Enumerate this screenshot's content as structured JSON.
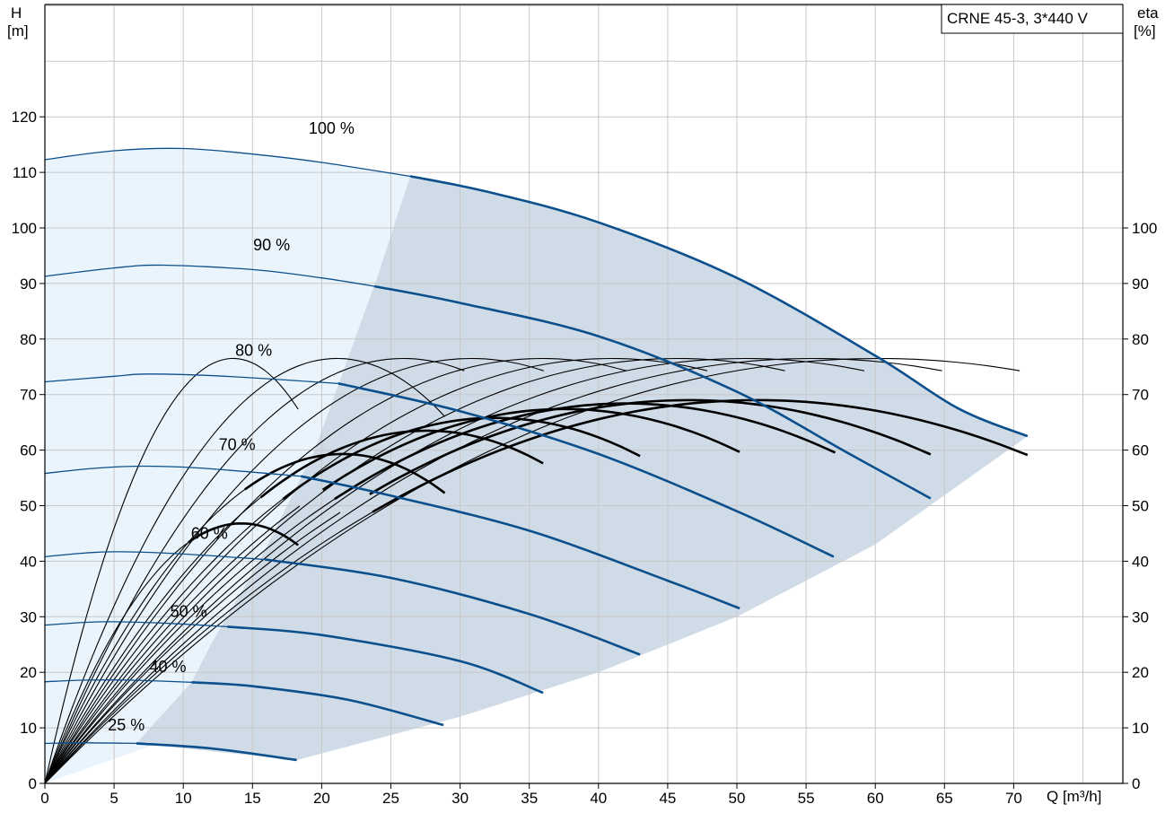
{
  "chart_data": {
    "type": "line",
    "title": "CRNE 45-3, 3*440 V",
    "x_axis": {
      "label": "Q [m³/h]",
      "range": [
        0,
        77
      ],
      "ticks": [
        0,
        5,
        10,
        15,
        20,
        25,
        30,
        35,
        40,
        45,
        50,
        55,
        60,
        65,
        70
      ]
    },
    "y_axis_left": {
      "label_line1": "H",
      "label_line2": "[m]",
      "range": [
        0,
        140
      ],
      "ticks": [
        0,
        10,
        20,
        30,
        40,
        50,
        60,
        70,
        80,
        90,
        100,
        110,
        120
      ]
    },
    "y_axis_right": {
      "label_line1": "eta",
      "label_line2": "[%]",
      "range": [
        0,
        140
      ],
      "ticks": [
        0,
        10,
        20,
        30,
        40,
        50,
        60,
        70,
        80,
        90,
        100
      ]
    },
    "grid": true,
    "colors": {
      "head_curve": "#0b4f8c",
      "eta_curve": "#000000",
      "band_light": "#eaf4fc",
      "band_dark": "#cfdbe6",
      "grid": "#c8c8c8",
      "frame": "#000000"
    },
    "head_curves": [
      {
        "speed": "100 %",
        "label_pos": [
          21,
          117
        ],
        "thin": [
          [
            0,
            112.3
          ],
          [
            5,
            113.9
          ],
          [
            10,
            114.3
          ],
          [
            15,
            113.3
          ],
          [
            20,
            111.8
          ],
          [
            26.4,
            109.3
          ]
        ],
        "thick": [
          [
            26.4,
            109.3
          ],
          [
            32,
            106.5
          ],
          [
            40,
            101
          ],
          [
            50,
            91
          ],
          [
            60,
            77
          ],
          [
            66,
            67.5
          ],
          [
            71,
            62.5
          ]
        ]
      },
      {
        "speed": "90 %",
        "label_pos": [
          17,
          96
        ],
        "thin": [
          [
            0,
            91.3
          ],
          [
            5,
            92.8
          ],
          [
            8.5,
            93.3
          ],
          [
            15,
            92.5
          ],
          [
            20,
            91
          ],
          [
            23.8,
            89.5
          ]
        ],
        "thick": [
          [
            23.8,
            89.5
          ],
          [
            30,
            86.5
          ],
          [
            40,
            80.5
          ],
          [
            50,
            70.5
          ],
          [
            58,
            59.5
          ],
          [
            64,
            51.3
          ]
        ]
      },
      {
        "speed": "80 %",
        "label_pos": [
          15.7,
          77
        ],
        "thin": [
          [
            0,
            72.3
          ],
          [
            5,
            73.3
          ],
          [
            7.5,
            73.7
          ],
          [
            13,
            73.3
          ],
          [
            21.2,
            72
          ]
        ],
        "thick": [
          [
            21.2,
            72
          ],
          [
            30,
            67
          ],
          [
            40,
            59.3
          ],
          [
            50,
            49
          ],
          [
            57,
            40.8
          ]
        ]
      },
      {
        "speed": "70 %",
        "label_pos": [
          14.5,
          60
        ],
        "thin": [
          [
            0,
            55.8
          ],
          [
            3,
            56.6
          ],
          [
            6.5,
            57.1
          ],
          [
            11,
            56.8
          ],
          [
            18.5,
            55.3
          ]
        ],
        "thick": [
          [
            18.5,
            55.3
          ],
          [
            25,
            51.8
          ],
          [
            35,
            45.5
          ],
          [
            45,
            36.5
          ],
          [
            50.2,
            31.5
          ]
        ]
      },
      {
        "speed": "60 %",
        "label_pos": [
          12.5,
          44
        ],
        "thin": [
          [
            0,
            40.8
          ],
          [
            3,
            41.5
          ],
          [
            5.5,
            41.7
          ],
          [
            10,
            41.3
          ],
          [
            15.9,
            40.3
          ]
        ],
        "thick": [
          [
            15.9,
            40.3
          ],
          [
            25,
            37
          ],
          [
            35,
            30.5
          ],
          [
            43,
            23.2
          ]
        ]
      },
      {
        "speed": "50 %",
        "label_pos": [
          11,
          30
        ],
        "thin": [
          [
            0,
            28.5
          ],
          [
            3,
            29
          ],
          [
            5,
            29.1
          ],
          [
            9,
            28.8
          ],
          [
            13.2,
            28.2
          ]
        ],
        "thick": [
          [
            13.2,
            28.2
          ],
          [
            20,
            26.7
          ],
          [
            30,
            22
          ]
        ],
        "thick_end": [
          [
            30,
            22
          ],
          [
            36,
            16.3
          ]
        ]
      },
      {
        "speed": "40 %",
        "label_pos": [
          9.5,
          20
        ],
        "thin": [
          [
            0,
            18.3
          ],
          [
            3,
            18.6
          ],
          [
            6,
            18.6
          ],
          [
            10.6,
            18.2
          ]
        ],
        "thick": [
          [
            10.6,
            18.2
          ],
          [
            15,
            17.5
          ],
          [
            22,
            15
          ],
          [
            28.8,
            10.5
          ]
        ]
      },
      {
        "speed": "25 %",
        "label_pos": [
          6.5,
          9.5
        ],
        "thin": [
          [
            0,
            7.2
          ],
          [
            3,
            7.3
          ],
          [
            6.6,
            7.2
          ]
        ],
        "thick": [
          [
            6.6,
            7.2
          ],
          [
            12,
            6.3
          ],
          [
            18.2,
            4.2
          ]
        ]
      }
    ],
    "eta_curves_thin": [
      {
        "h": 0.22,
        "peak_q": 13.6,
        "peak": 76.5
      },
      {
        "h": 0.165,
        "peak_q": 21.1,
        "peak": 76.5
      },
      {
        "h": 0.135,
        "peak_q": 25.9,
        "peak": 76.5
      },
      {
        "h": 0.116,
        "peak_q": 30.8,
        "peak": 76.5
      },
      {
        "h": 0.098,
        "peak_q": 35.9,
        "peak": 76.5
      },
      {
        "h": 0.085,
        "peak_q": 40.9,
        "peak": 76.5
      },
      {
        "h": 0.075,
        "peak_q": 45.7,
        "peak": 76.5
      },
      {
        "h": 0.067,
        "peak_q": 50.6,
        "peak": 76.5
      },
      {
        "h": 0.06,
        "peak_q": 55.4,
        "peak": 76.5
      },
      {
        "h": 0.055,
        "peak_q": 60.2,
        "peak": 76.5
      }
    ],
    "eta_curve_thin_ends": [
      18.3,
      28.9,
      36.0,
      43.0,
      50.2,
      57.1,
      64.0,
      71.0,
      71.0,
      71.0
    ],
    "eta_curve_thin_end_vals": [
      66.3,
      67.0,
      66.7,
      66.8,
      66.7,
      66.5,
      66.8,
      66.6,
      66.8,
      66.8
    ],
    "eta_curves_thick": [
      {
        "start": [
          10.6,
          36.5
        ],
        "peak_q": 14.2,
        "peak": 46.8,
        "end": [
          18.3,
          41.3
        ]
      },
      {
        "start": [
          14,
          47
        ],
        "peak_q": 21.5,
        "peak": 59.3,
        "end": [
          28.9,
          52.0
        ]
      },
      {
        "start": [
          15.5,
          52
        ],
        "peak_q": 27.6,
        "peak": 63.5,
        "end": [
          36.0,
          55.2
        ]
      },
      {
        "start": [
          17.5,
          55
        ],
        "peak_q": 32.5,
        "peak": 65.8,
        "end": [
          43.0,
          57.1
        ]
      },
      {
        "start": [
          19.5,
          56.5
        ],
        "peak_q": 37.5,
        "peak": 67.4,
        "end": [
          50.2,
          58.7
        ]
      },
      {
        "start": [
          21,
          58
        ],
        "peak_q": 42.0,
        "peak": 68.4,
        "end": [
          57.1,
          59.7
        ]
      },
      {
        "start": [
          22.5,
          59.5
        ],
        "peak_q": 46.5,
        "peak": 69.0,
        "end": [
          64.0,
          60.1
        ]
      },
      {
        "start": [
          24,
          60.5
        ],
        "peak_q": 51.5,
        "peak": 69.0,
        "end": [
          71.0,
          60.0
        ]
      }
    ]
  }
}
